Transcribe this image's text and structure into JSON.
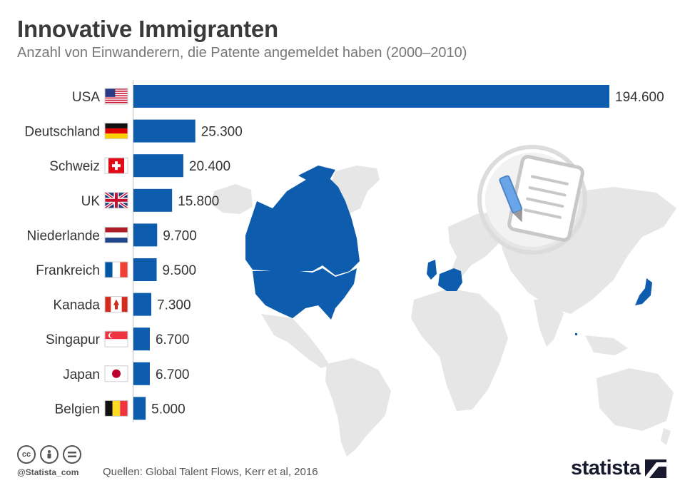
{
  "header": {
    "title": "Innovative Immigranten",
    "subtitle": "Anzahl von Einwanderern, die Patente angemeldet haben (2000–2010)"
  },
  "chart_data": {
    "type": "bar",
    "orientation": "horizontal",
    "categories": [
      "USA",
      "Deutschland",
      "Schweiz",
      "UK",
      "Niederlande",
      "Frankreich",
      "Kanada",
      "Singapur",
      "Japan",
      "Belgien"
    ],
    "values": [
      194600,
      25300,
      20400,
      15800,
      9700,
      9500,
      7300,
      6700,
      6700,
      5000
    ],
    "value_labels": [
      "194.600",
      "25.300",
      "20.400",
      "15.800",
      "9.700",
      "9.500",
      "7.300",
      "6.700",
      "6.700",
      "5.000"
    ],
    "flags": [
      "flag-usa-icon",
      "flag-germany-icon",
      "flag-switzerland-icon",
      "flag-uk-icon",
      "flag-netherlands-icon",
      "flag-france-icon",
      "flag-canada-icon",
      "flag-singapore-icon",
      "flag-japan-icon",
      "flag-belgium-icon"
    ],
    "xlim": [
      0,
      194600
    ],
    "grid": false,
    "bar_color": "#0d5cae"
  },
  "colors": {
    "bar": "#0d5cae",
    "map_highlight": "#0d5cae",
    "map_base": "#e6e6e6",
    "icon_circle": "#dcdcdc"
  },
  "footer": {
    "handle": "@Statista_com",
    "source": "Quellen: Global Talent Flows, Kerr et al, 2016",
    "brand": "statista",
    "cc_icons": [
      "cc-icon",
      "attribution-icon",
      "equal-icon"
    ]
  }
}
